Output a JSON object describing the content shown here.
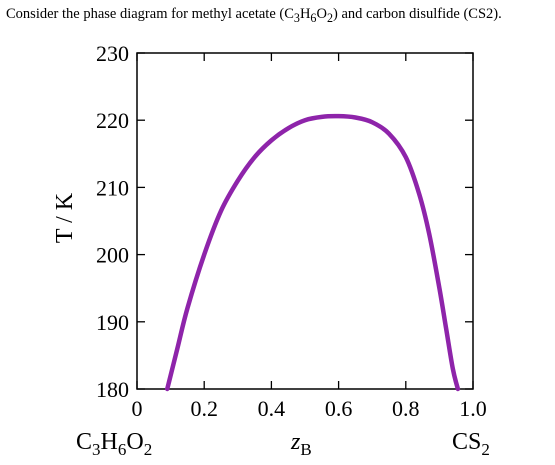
{
  "question": {
    "prefix": "Consider the phase diagram for methyl acetate (C",
    "s1": "3",
    "m1": "H",
    "s2": "6",
    "m2": "O",
    "s3": "2",
    "suffix": ") and carbon disulfide (CS2)."
  },
  "colors": {
    "curve": "#8e24aa",
    "axis": "#000000"
  },
  "chart_data": {
    "type": "line",
    "title": "",
    "xlabel": "z_B",
    "ylabel": "T / K",
    "xlim": [
      0,
      1
    ],
    "ylim": [
      180,
      230
    ],
    "xticks": [
      0,
      0.2,
      0.4,
      0.6,
      0.8,
      1.0
    ],
    "xtick_labels": [
      "0",
      "0.2",
      "0.4",
      "0.6",
      "0.8",
      "1.0"
    ],
    "yticks": [
      180,
      190,
      200,
      210,
      220,
      230
    ],
    "ytick_labels": [
      "180",
      "190",
      "200",
      "210",
      "220",
      "230"
    ],
    "grid": false,
    "left_component": {
      "main": "C",
      "s1": "3",
      "m1": "H",
      "s2": "6",
      "m2": "O",
      "s3": "2"
    },
    "right_component": {
      "main": "CS",
      "s1": "2"
    },
    "xlabel_parts": {
      "main": "z",
      "sub": "B"
    },
    "ylabel_text": "T / K",
    "series": [
      {
        "x": [
          0.09,
          0.12,
          0.15,
          0.2,
          0.25,
          0.3,
          0.35,
          0.4,
          0.45,
          0.5,
          0.55,
          0.6,
          0.65,
          0.7,
          0.75,
          0.8,
          0.84,
          0.87,
          0.9,
          0.92,
          0.94,
          0.955
        ],
        "y": [
          180,
          186,
          192,
          200,
          206.5,
          211,
          214.5,
          217,
          218.8,
          220,
          220.5,
          220.6,
          220.4,
          219.7,
          218,
          214.5,
          209,
          203,
          195,
          189,
          183,
          180
        ]
      }
    ]
  }
}
